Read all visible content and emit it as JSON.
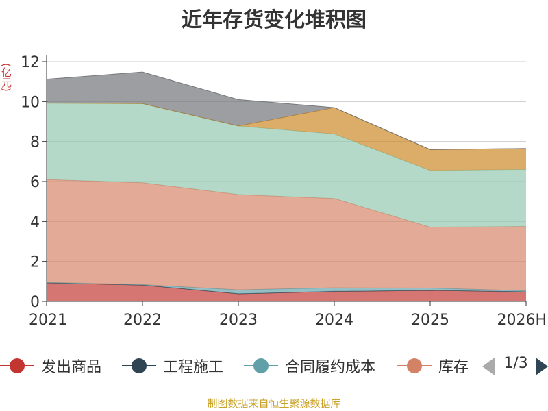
{
  "chart_data": {
    "type": "area",
    "stacked": true,
    "title": "近年存货变化堆积图",
    "unit_label": "(亿元)",
    "categories": [
      "2021",
      "2022",
      "2023",
      "2024",
      "2025",
      "2026H"
    ],
    "ylim": [
      0,
      12
    ],
    "yticks": [
      0,
      2,
      4,
      6,
      8,
      10,
      12
    ],
    "grid": true,
    "series": [
      {
        "name": "发出商品",
        "color": "#c23531",
        "values": [
          0.93,
          0.82,
          0.38,
          0.5,
          0.55,
          0.48
        ]
      },
      {
        "name": "工程施工",
        "color": "#2f4554",
        "values": [
          0,
          0,
          0,
          0,
          0,
          0
        ]
      },
      {
        "name": "合同履约成本",
        "color": "#61a0a8",
        "values": [
          0.02,
          0.02,
          0.2,
          0.18,
          0.12,
          0.05
        ]
      },
      {
        "name": "库存",
        "color": "#d48265",
        "values": [
          5.15,
          5.1,
          4.77,
          4.47,
          3.05,
          3.22
        ]
      },
      {
        "name": "",
        "color": "#91c7ae",
        "values": [
          3.82,
          3.96,
          3.43,
          3.23,
          2.83,
          2.85
        ]
      },
      {
        "name": "",
        "color": "#ca8622",
        "values": [
          0,
          0,
          0,
          1.32,
          1.05,
          1.05
        ]
      },
      {
        "name": "",
        "color": "#6e7074",
        "values": [
          1.2,
          1.58,
          1.32,
          0,
          0,
          0
        ]
      }
    ]
  },
  "legend": {
    "items": [
      {
        "label": "发出商品",
        "color": "#c23531"
      },
      {
        "label": "工程施工",
        "color": "#2f4554"
      },
      {
        "label": "合同履约成本",
        "color": "#61a0a8"
      },
      {
        "label": "库存",
        "color": "#d48265"
      }
    ],
    "page": "1/3"
  },
  "footer": "制图数据来自恒生聚源数据库"
}
